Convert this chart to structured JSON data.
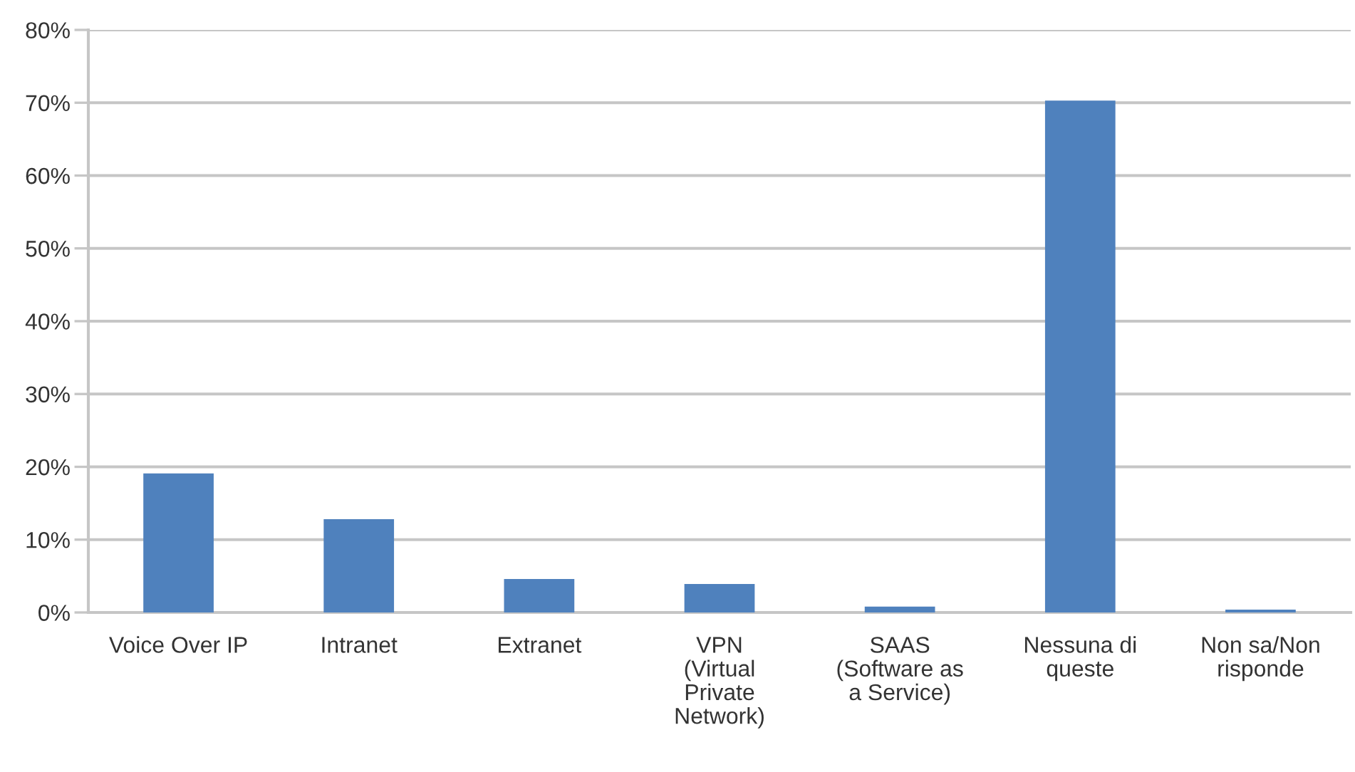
{
  "chart_data": {
    "type": "bar",
    "categories": [
      "Voice Over IP",
      "Intranet",
      "Extranet",
      "VPN\n(Virtual\nPrivate\nNetwork)",
      "SAAS\n(Software as\na Service)",
      "Nessuna di\nqueste",
      "Non sa/Non\nrisponde"
    ],
    "values": [
      19.1,
      12.8,
      4.6,
      3.9,
      0.8,
      70.3,
      0.4
    ],
    "color": "#4f81bd",
    "ylim": [
      0,
      80
    ],
    "yticks": [
      {
        "value": 0,
        "label": "0%"
      },
      {
        "value": 10,
        "label": "10%"
      },
      {
        "value": 20,
        "label": "20%"
      },
      {
        "value": 30,
        "label": "30%"
      },
      {
        "value": 40,
        "label": "40%"
      },
      {
        "value": 50,
        "label": "50%"
      },
      {
        "value": 60,
        "label": "60%"
      },
      {
        "value": 70,
        "label": "70%"
      },
      {
        "value": 80,
        "label": "80%"
      }
    ],
    "grid": "y",
    "legend": false
  }
}
